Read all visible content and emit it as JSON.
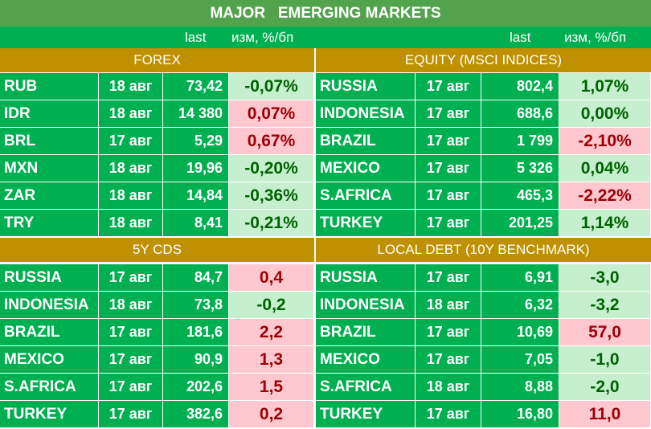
{
  "title": "MAJOR   EMERGING MARKETS",
  "col_headers": {
    "left_last": "last",
    "left_chg": "изм, %/бп",
    "right_last": "last",
    "right_chg": "изм, %/бп"
  },
  "colors": {
    "title_bg": "#53a34e",
    "cell_bg": "#00b050",
    "section_bg": "#bf9000",
    "pos_bg": "#c6efce",
    "pos_text": "#006100",
    "neg_bg": "#ffc7ce",
    "neg_text": "#9c0006"
  },
  "sections": {
    "forex": {
      "title": "FOREX",
      "rows": [
        {
          "name": "RUB",
          "date": "18 авг",
          "last": "73,42",
          "change": "-0,07%",
          "trend": "pos"
        },
        {
          "name": "IDR",
          "date": "18 авг",
          "last": "14 380",
          "change": "0,07%",
          "trend": "neg"
        },
        {
          "name": "BRL",
          "date": "17 авг",
          "last": "5,29",
          "change": "0,67%",
          "trend": "neg"
        },
        {
          "name": "MXN",
          "date": "18 авг",
          "last": "19,96",
          "change": "-0,20%",
          "trend": "pos"
        },
        {
          "name": "ZAR",
          "date": "18 авг",
          "last": "14,84",
          "change": "-0,36%",
          "trend": "pos"
        },
        {
          "name": "TRY",
          "date": "18 авг",
          "last": "8,41",
          "change": "-0,21%",
          "trend": "pos"
        }
      ]
    },
    "equity": {
      "title": "EQUITY (MSCI INDICES)",
      "rows": [
        {
          "name": "RUSSIA",
          "date": "17 авг",
          "last": "802,4",
          "change": "1,07%",
          "trend": "pos"
        },
        {
          "name": "INDONESIA",
          "date": "17 авг",
          "last": "688,6",
          "change": "0,00%",
          "trend": "pos"
        },
        {
          "name": "BRAZIL",
          "date": "17 авг",
          "last": "1 799",
          "change": "-2,10%",
          "trend": "neg"
        },
        {
          "name": "MEXICO",
          "date": "17 авг",
          "last": "5 326",
          "change": "0,04%",
          "trend": "pos"
        },
        {
          "name": "S.AFRICA",
          "date": "17 авг",
          "last": "465,3",
          "change": "-2,22%",
          "trend": "neg"
        },
        {
          "name": "TURKEY",
          "date": "17 авг",
          "last": "201,25",
          "change": "1,14%",
          "trend": "pos"
        }
      ]
    },
    "cds": {
      "title": "5Y CDS",
      "rows": [
        {
          "name": "RUSSIA",
          "date": "17 авг",
          "last": "84,7",
          "change": "0,4",
          "trend": "neg"
        },
        {
          "name": "INDONESIA",
          "date": "18 авг",
          "last": "73,8",
          "change": "-0,2",
          "trend": "pos"
        },
        {
          "name": "BRAZIL",
          "date": "17 авг",
          "last": "181,6",
          "change": "2,2",
          "trend": "neg"
        },
        {
          "name": "MEXICO",
          "date": "17 авг",
          "last": "90,9",
          "change": "1,3",
          "trend": "neg"
        },
        {
          "name": "S.AFRICA",
          "date": "17 авг",
          "last": "202,6",
          "change": "1,5",
          "trend": "neg"
        },
        {
          "name": "TURKEY",
          "date": "17 авг",
          "last": "382,6",
          "change": "0,2",
          "trend": "neg"
        }
      ]
    },
    "debt": {
      "title": "LOCAL DEBT (10Y BENCHMARK)",
      "rows": [
        {
          "name": "RUSSIA",
          "date": "17 авг",
          "last": "6,91",
          "change": "-3,0",
          "trend": "pos"
        },
        {
          "name": "INDONESIA",
          "date": "18 авг",
          "last": "6,32",
          "change": "-3,2",
          "trend": "pos"
        },
        {
          "name": "BRAZIL",
          "date": "17 авг",
          "last": "10,69",
          "change": "57,0",
          "trend": "neg"
        },
        {
          "name": "MEXICO",
          "date": "17 авг",
          "last": "7,05",
          "change": "-1,0",
          "trend": "pos"
        },
        {
          "name": "S.AFRICA",
          "date": "18 авг",
          "last": "8,88",
          "change": "-2,0",
          "trend": "pos"
        },
        {
          "name": "TURKEY",
          "date": "17 авг",
          "last": "16,80",
          "change": "11,0",
          "trend": "neg"
        }
      ]
    }
  }
}
